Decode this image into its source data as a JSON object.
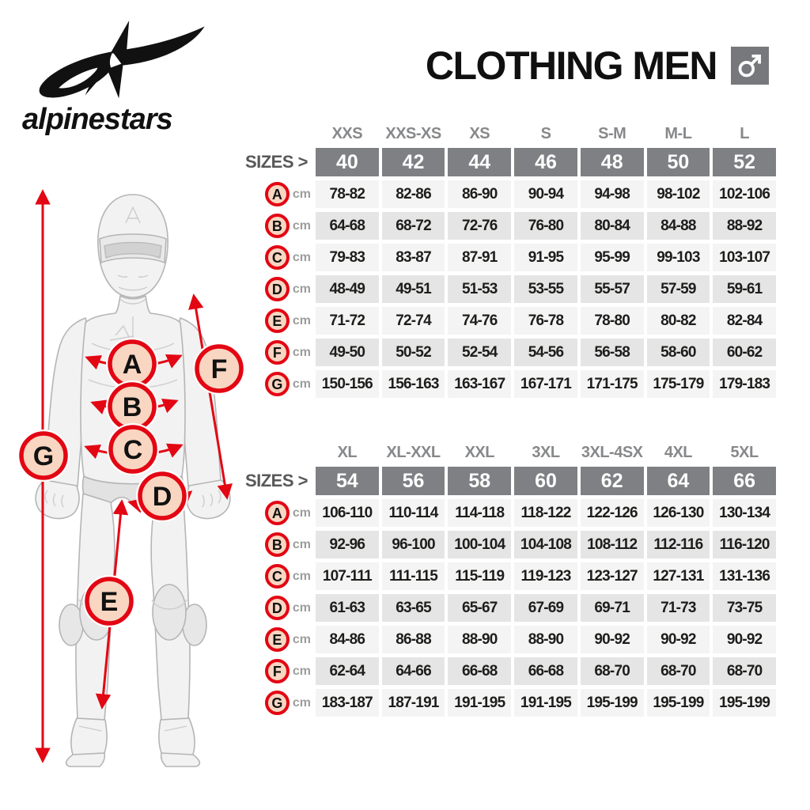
{
  "brand": "alpinestars",
  "header": {
    "title": "CLOTHING MEN",
    "gender_icon": "male-symbol"
  },
  "colors": {
    "accent_red": "#e30613",
    "badge_fill": "#f8d6c1",
    "band_gray": "#7e8083",
    "head_gray": "#87888a",
    "icon_gray": "#77787b",
    "row_light": "#f4f4f4",
    "row_dark": "#e5e5e5"
  },
  "chart_data": {
    "type": "table",
    "title": "CLOTHING MEN",
    "sizes_label": "SIZES >",
    "unit": "cm",
    "figure_markers": [
      "A",
      "B",
      "C",
      "D",
      "E",
      "F",
      "G"
    ],
    "tables": [
      {
        "name": "sizes-40-52",
        "column_heads": [
          "XXS",
          "XXS-XS",
          "XS",
          "S",
          "S-M",
          "M-L",
          "L"
        ],
        "sizes": [
          "40",
          "42",
          "44",
          "46",
          "48",
          "50",
          "52"
        ],
        "rows": [
          {
            "label": "A",
            "unit": "cm",
            "values": [
              "78-82",
              "82-86",
              "86-90",
              "90-94",
              "94-98",
              "98-102",
              "102-106"
            ]
          },
          {
            "label": "B",
            "unit": "cm",
            "values": [
              "64-68",
              "68-72",
              "72-76",
              "76-80",
              "80-84",
              "84-88",
              "88-92"
            ]
          },
          {
            "label": "C",
            "unit": "cm",
            "values": [
              "79-83",
              "83-87",
              "87-91",
              "91-95",
              "95-99",
              "99-103",
              "103-107"
            ]
          },
          {
            "label": "D",
            "unit": "cm",
            "values": [
              "48-49",
              "49-51",
              "51-53",
              "53-55",
              "55-57",
              "57-59",
              "59-61"
            ]
          },
          {
            "label": "E",
            "unit": "cm",
            "values": [
              "71-72",
              "72-74",
              "74-76",
              "76-78",
              "78-80",
              "80-82",
              "82-84"
            ]
          },
          {
            "label": "F",
            "unit": "cm",
            "values": [
              "49-50",
              "50-52",
              "52-54",
              "54-56",
              "56-58",
              "58-60",
              "60-62"
            ]
          },
          {
            "label": "G",
            "unit": "cm",
            "values": [
              "150-156",
              "156-163",
              "163-167",
              "167-171",
              "171-175",
              "175-179",
              "179-183"
            ]
          }
        ]
      },
      {
        "name": "sizes-54-66",
        "column_heads": [
          "XL",
          "XL-XXL",
          "XXL",
          "3XL",
          "3XL-4SX",
          "4XL",
          "5XL"
        ],
        "sizes": [
          "54",
          "56",
          "58",
          "60",
          "62",
          "64",
          "66"
        ],
        "rows": [
          {
            "label": "A",
            "unit": "cm",
            "values": [
              "106-110",
              "110-114",
              "114-118",
              "118-122",
              "122-126",
              "126-130",
              "130-134"
            ]
          },
          {
            "label": "B",
            "unit": "cm",
            "values": [
              "92-96",
              "96-100",
              "100-104",
              "104-108",
              "108-112",
              "112-116",
              "116-120"
            ]
          },
          {
            "label": "C",
            "unit": "cm",
            "values": [
              "107-111",
              "111-115",
              "115-119",
              "119-123",
              "123-127",
              "127-131",
              "131-136"
            ]
          },
          {
            "label": "D",
            "unit": "cm",
            "values": [
              "61-63",
              "63-65",
              "65-67",
              "67-69",
              "69-71",
              "71-73",
              "73-75"
            ]
          },
          {
            "label": "E",
            "unit": "cm",
            "values": [
              "84-86",
              "86-88",
              "88-90",
              "88-90",
              "90-92",
              "90-92",
              "90-92"
            ]
          },
          {
            "label": "F",
            "unit": "cm",
            "values": [
              "62-64",
              "64-66",
              "66-68",
              "66-68",
              "68-70",
              "68-70",
              "68-70"
            ]
          },
          {
            "label": "G",
            "unit": "cm",
            "values": [
              "183-187",
              "187-191",
              "191-195",
              "191-195",
              "195-199",
              "195-199",
              "195-199"
            ]
          }
        ]
      }
    ]
  }
}
